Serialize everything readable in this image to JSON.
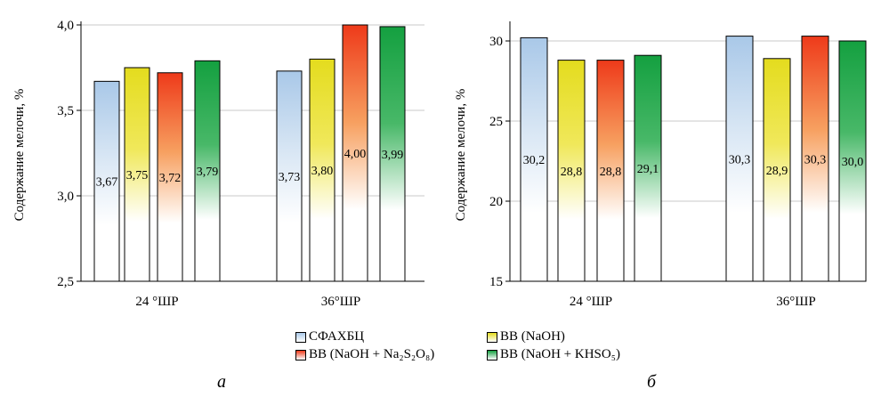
{
  "chart_data": [
    {
      "type": "bar",
      "panel": "а",
      "ylabel": "Содержание мелочи, %",
      "ylim": [
        2.5,
        4.0
      ],
      "yticks": [
        2.5,
        3.0,
        3.5,
        4.0
      ],
      "ytick_labels": [
        "2,5",
        "3,0",
        "3,5",
        "4,0"
      ],
      "categories": [
        "24 °ШР",
        "36°ШР"
      ],
      "grid": true,
      "series": [
        {
          "name": "СФАХБЦ",
          "values": [
            3.67,
            3.73
          ],
          "labels": [
            "3,67",
            "3,73"
          ]
        },
        {
          "name": "ВВ (NaOH)",
          "values": [
            3.75,
            3.8
          ],
          "labels": [
            "3,75",
            "3,80"
          ]
        },
        {
          "name": "ВВ (NaOH + Na2S2O8)",
          "values": [
            3.72,
            4.0
          ],
          "labels": [
            "3,72",
            "4,00"
          ]
        },
        {
          "name": "ВВ (NaOH + KHSO5)",
          "values": [
            3.79,
            3.99
          ],
          "labels": [
            "3,79",
            "3,99"
          ]
        }
      ]
    },
    {
      "type": "bar",
      "panel": "б",
      "ylabel": "Содержание мелочи, %",
      "ylim": [
        15,
        31
      ],
      "yticks": [
        15,
        20,
        25,
        30
      ],
      "ytick_labels": [
        "15",
        "20",
        "25",
        "30"
      ],
      "categories": [
        "24 °ШР",
        "36°ШР"
      ],
      "grid": true,
      "series": [
        {
          "name": "СФАХБЦ",
          "values": [
            30.2,
            30.3
          ],
          "labels": [
            "30,2",
            "30,3"
          ]
        },
        {
          "name": "ВВ (NaOH)",
          "values": [
            28.8,
            28.9
          ],
          "labels": [
            "28,8",
            "28,9"
          ]
        },
        {
          "name": "ВВ (NaOH + Na2S2O8)",
          "values": [
            28.8,
            30.3
          ],
          "labels": [
            "28,8",
            "30,3"
          ]
        },
        {
          "name": "ВВ (NaOH + KHSO5)",
          "values": [
            29.1,
            30.0
          ],
          "labels": [
            "29,1",
            "30,0"
          ]
        }
      ]
    }
  ],
  "legend": {
    "placement": "bottom-center",
    "items": [
      {
        "label": "СФАХБЦ",
        "color": "#a9c8e8"
      },
      {
        "label": "ВВ (NaOH)",
        "color": "#e4dc1e"
      },
      {
        "label": "ВВ (NaOH + Na₂S₂O₈)",
        "color": "#ee3a1a"
      },
      {
        "label": "ВВ (NaOH + KHSO₅)",
        "color": "#14a040"
      }
    ]
  },
  "colors": {
    "series": [
      "#a9c8e8",
      "#e4dc1e",
      "#ee3a1a",
      "#14a040"
    ],
    "series_mid": [
      "#d8e6f4",
      "#f0e85a",
      "#f7a060",
      "#48b868"
    ],
    "grid": "#c8c8c8"
  },
  "panel_letters": {
    "a": "а",
    "b": "б"
  }
}
